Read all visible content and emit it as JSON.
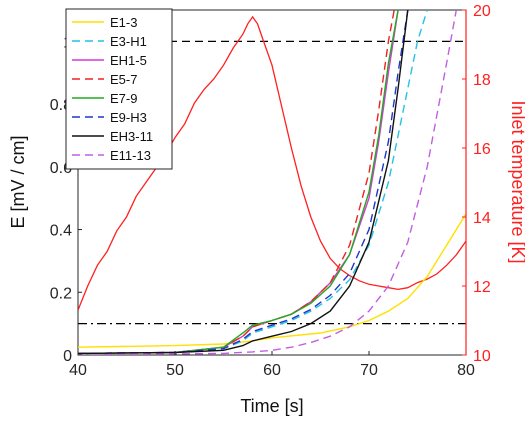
{
  "chart_data": {
    "type": "line",
    "xlabel": "Time [s]",
    "ylabel_left": "E [mV / cm]",
    "ylabel_right": "Inlet temperature [K]",
    "xlim": [
      40,
      80
    ],
    "ylim_left": [
      0,
      1.1
    ],
    "ylim_right": [
      10,
      20
    ],
    "x_ticks": [
      40,
      50,
      60,
      70,
      80
    ],
    "y_ticks_left": [
      0,
      0.2,
      0.4,
      0.6,
      0.8,
      1
    ],
    "y_ticks_right": [
      10,
      12,
      14,
      16,
      18,
      20
    ],
    "reference_lines": [
      {
        "style": "dashed",
        "color": "#000000",
        "y": 1.0
      },
      {
        "style": "dashdot",
        "color": "#000000",
        "y": 0.1
      }
    ],
    "legend_position": "top-left",
    "series": [
      {
        "name": "E1-3",
        "color": "#ffe000",
        "dash": "solid",
        "x": [
          40,
          50,
          55,
          58,
          60,
          65,
          68,
          70,
          72,
          74,
          76,
          78,
          80
        ],
        "y": [
          0.025,
          0.03,
          0.035,
          0.045,
          0.055,
          0.07,
          0.09,
          0.11,
          0.14,
          0.18,
          0.25,
          0.35,
          0.45
        ]
      },
      {
        "name": "E3-H1",
        "color": "#22c4e0",
        "dash": "dashed",
        "x": [
          40,
          50,
          55,
          57,
          58,
          60,
          62,
          64,
          66,
          68,
          70,
          72,
          74,
          75,
          76
        ],
        "y": [
          0.005,
          0.008,
          0.02,
          0.045,
          0.07,
          0.09,
          0.11,
          0.14,
          0.18,
          0.24,
          0.35,
          0.55,
          0.85,
          1.0,
          1.1
        ]
      },
      {
        "name": "EH1-5",
        "color": "#d43ad4",
        "dash": "solid",
        "x": [
          40,
          50,
          55,
          57,
          58,
          60,
          62,
          64,
          66,
          68,
          70,
          71,
          72,
          73
        ],
        "y": [
          0.005,
          0.008,
          0.025,
          0.06,
          0.09,
          0.11,
          0.13,
          0.17,
          0.23,
          0.32,
          0.5,
          0.68,
          0.9,
          1.1
        ]
      },
      {
        "name": "E5-7",
        "color": "#ee2222",
        "dash": "dashed",
        "x": [
          40,
          50,
          55,
          57,
          58,
          60,
          62,
          64,
          66,
          68,
          70,
          71,
          72,
          72.6
        ],
        "y": [
          0.005,
          0.008,
          0.025,
          0.06,
          0.09,
          0.11,
          0.13,
          0.17,
          0.23,
          0.35,
          0.58,
          0.78,
          1.0,
          1.1
        ]
      },
      {
        "name": "E7-9",
        "color": "#22aa22",
        "dash": "solid",
        "x": [
          40,
          50,
          55,
          57,
          58,
          60,
          62,
          64,
          66,
          68,
          70,
          71,
          72,
          73
        ],
        "y": [
          0.005,
          0.008,
          0.025,
          0.07,
          0.095,
          0.11,
          0.13,
          0.165,
          0.22,
          0.32,
          0.52,
          0.7,
          0.93,
          1.1
        ]
      },
      {
        "name": "E9-H3",
        "color": "#2233cc",
        "dash": "dashed",
        "x": [
          40,
          50,
          55,
          57,
          58,
          60,
          62,
          64,
          66,
          68,
          70,
          72,
          73,
          74
        ],
        "y": [
          0.005,
          0.008,
          0.02,
          0.05,
          0.075,
          0.095,
          0.115,
          0.145,
          0.19,
          0.26,
          0.4,
          0.68,
          0.9,
          1.1
        ]
      },
      {
        "name": "EH3-11",
        "color": "#111111",
        "dash": "solid",
        "x": [
          40,
          50,
          55,
          57,
          58,
          60,
          62,
          64,
          66,
          68,
          70,
          72,
          73,
          74
        ],
        "y": [
          0.005,
          0.008,
          0.015,
          0.03,
          0.045,
          0.06,
          0.075,
          0.1,
          0.14,
          0.22,
          0.36,
          0.62,
          0.85,
          1.1
        ]
      },
      {
        "name": "E11-13",
        "color": "#c060e0",
        "dash": "dashed",
        "x": [
          40,
          55,
          58,
          60,
          62,
          64,
          66,
          68,
          70,
          72,
          74,
          76,
          78,
          79
        ],
        "y": [
          0.0,
          0.005,
          0.01,
          0.015,
          0.025,
          0.04,
          0.06,
          0.09,
          0.14,
          0.22,
          0.36,
          0.6,
          0.93,
          1.1
        ]
      }
    ],
    "temperature_series": {
      "color": "#ff2020",
      "axis": "right",
      "x": [
        40,
        41,
        42,
        43,
        44,
        45,
        46,
        47,
        48,
        49,
        50,
        51,
        52,
        53,
        54,
        55,
        56,
        57,
        57.5,
        58,
        58.5,
        59,
        60,
        61,
        62,
        63,
        64,
        65,
        66,
        67,
        68,
        69,
        70,
        71,
        72,
        73,
        74,
        75,
        76,
        77,
        78,
        79,
        80
      ],
      "y": [
        11.3,
        12.0,
        12.6,
        13.0,
        13.6,
        14.0,
        14.6,
        15.0,
        15.4,
        15.8,
        16.3,
        16.7,
        17.3,
        17.7,
        18.0,
        18.4,
        18.9,
        19.3,
        19.6,
        19.8,
        19.6,
        19.2,
        18.4,
        17.2,
        16.0,
        14.9,
        14.0,
        13.3,
        12.8,
        12.5,
        12.3,
        12.15,
        12.05,
        12.0,
        11.95,
        11.9,
        11.95,
        12.1,
        12.2,
        12.35,
        12.6,
        12.9,
        13.3
      ]
    }
  }
}
